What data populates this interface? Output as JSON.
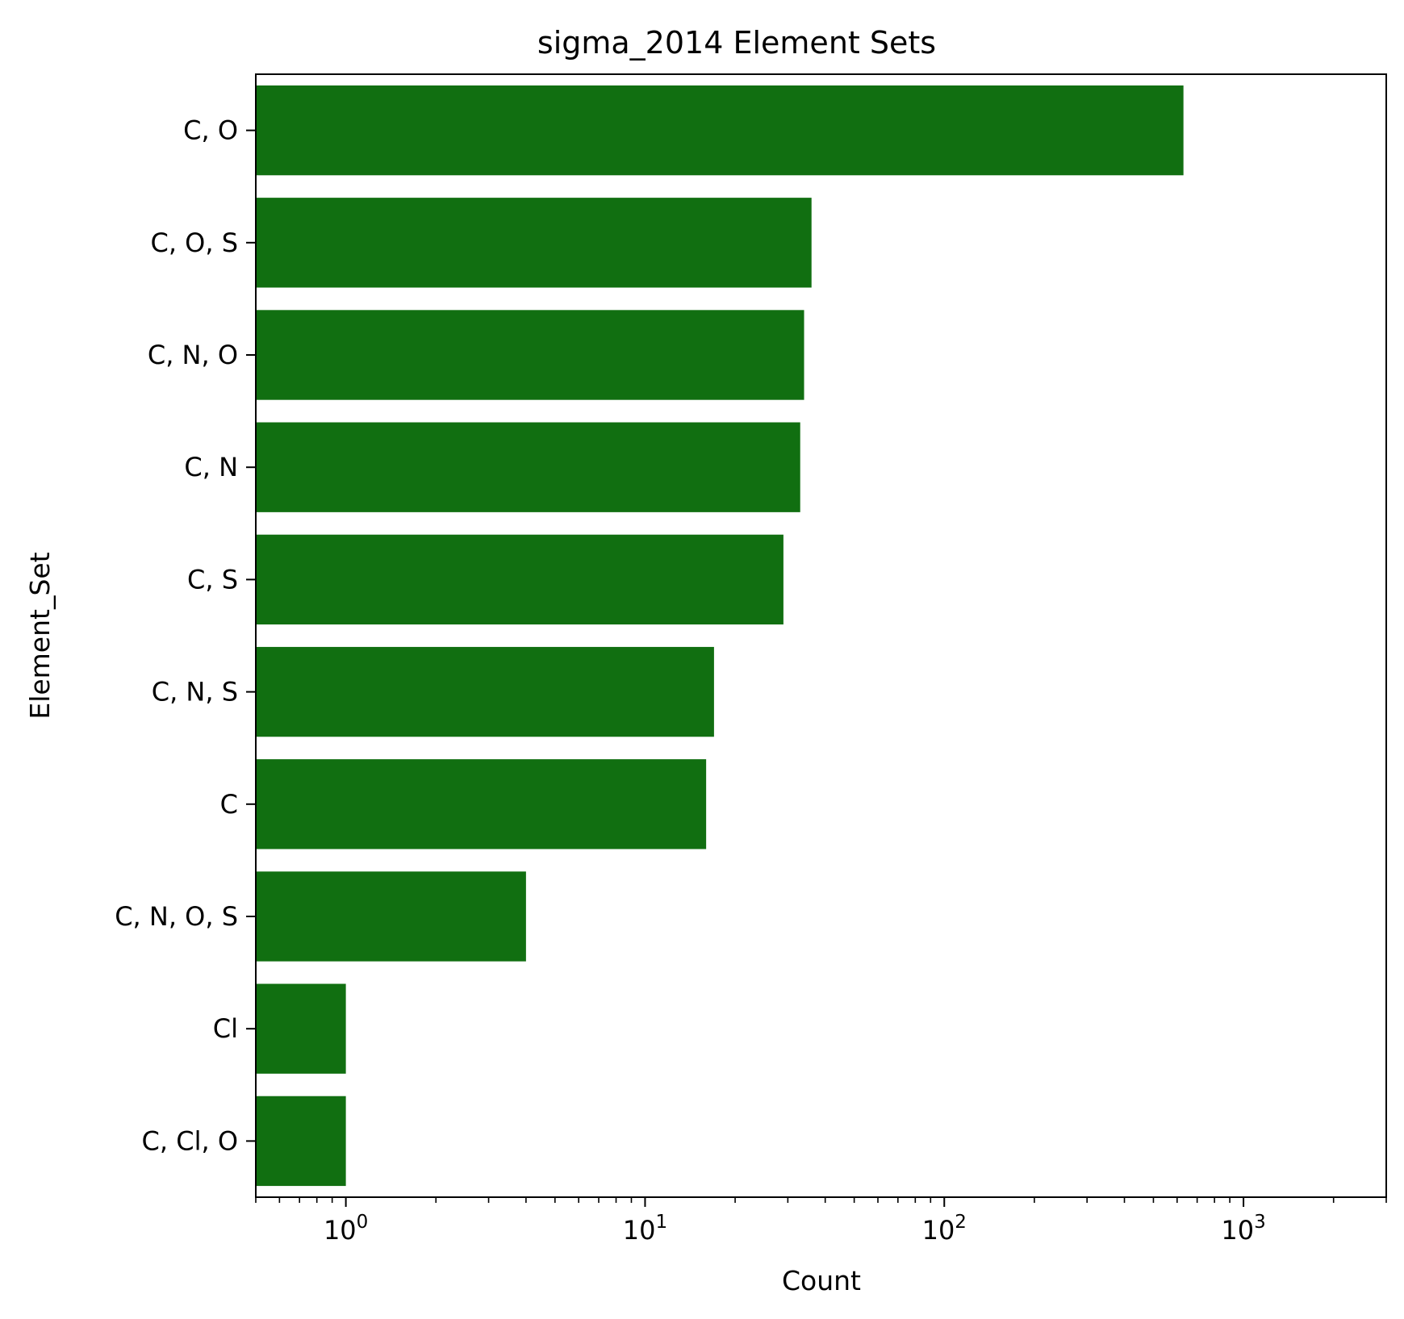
{
  "chart_data": {
    "type": "bar",
    "orientation": "horizontal",
    "title": "sigma_2014 Element Sets",
    "xlabel": "Count",
    "ylabel": "Element_Set",
    "xscale": "log",
    "xlim": [
      0.5,
      3000
    ],
    "x_ticks": [
      {
        "value": 1,
        "base": "10",
        "exp": "0"
      },
      {
        "value": 10,
        "base": "10",
        "exp": "1"
      },
      {
        "value": 100,
        "base": "10",
        "exp": "2"
      },
      {
        "value": 1000,
        "base": "10",
        "exp": "3"
      }
    ],
    "categories": [
      "C, O",
      "C, O, S",
      "C, N, O",
      "C, N",
      "C, S",
      "C, N, S",
      "C",
      "C, N, O, S",
      "Cl",
      "C, Cl, O"
    ],
    "values": [
      630,
      36,
      34,
      33,
      29,
      17,
      16,
      4,
      1,
      1
    ],
    "bar_color": "#116f11",
    "grid": false,
    "legend": "none"
  }
}
